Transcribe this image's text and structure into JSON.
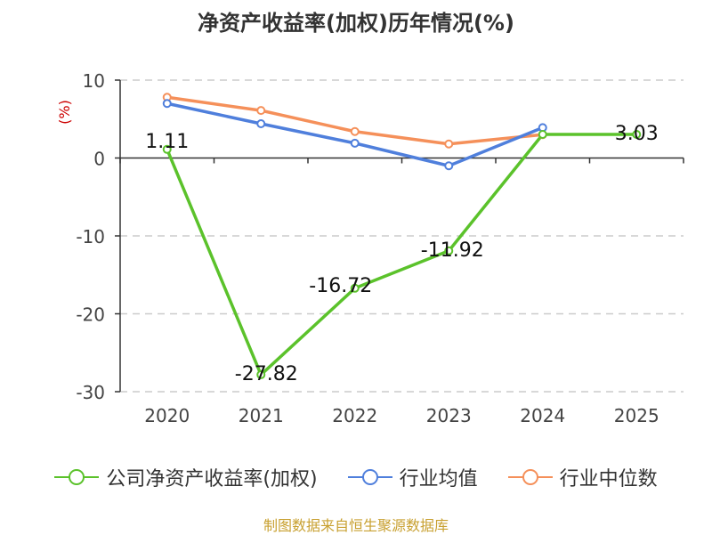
{
  "chart_data": {
    "type": "line",
    "title": "净资产收益率(加权)历年情况(%)",
    "ylabel": "(%)",
    "xlabel": "",
    "categories": [
      "2020",
      "2021",
      "2022",
      "2023",
      "2024",
      "2025"
    ],
    "ylim": [
      -30,
      10
    ],
    "yticks": [
      10,
      0,
      -10,
      -20,
      -30
    ],
    "grid": true,
    "legend_position": "bottom",
    "series": [
      {
        "name": "公司净资产收益率(加权)",
        "color": "#5bc22b",
        "values": [
          1.11,
          -27.82,
          -16.72,
          -11.92,
          3.03,
          3.03
        ],
        "labels": [
          "1.11",
          "-27.82",
          "-16.72",
          "-11.92",
          "",
          "3.03"
        ]
      },
      {
        "name": "行业均值",
        "color": "#4f7fdc",
        "values": [
          7.0,
          4.4,
          1.9,
          -1.0,
          3.9,
          null
        ]
      },
      {
        "name": "行业中位数",
        "color": "#f5905a",
        "values": [
          7.8,
          6.1,
          3.4,
          1.8,
          3.0,
          null
        ]
      }
    ],
    "source": "制图数据来自恒生聚源数据库"
  }
}
